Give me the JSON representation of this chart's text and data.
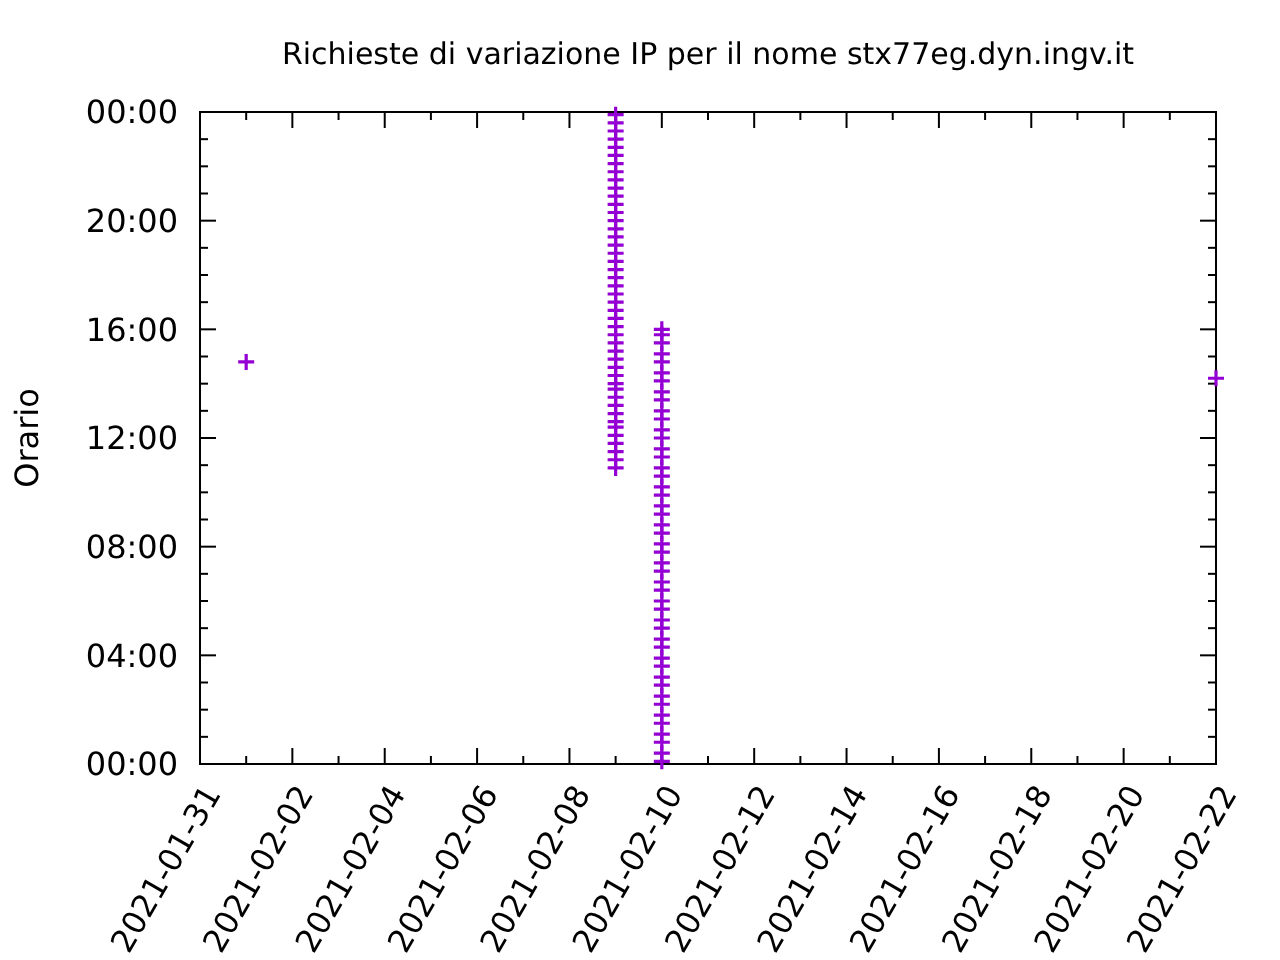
{
  "chart_data": {
    "type": "scatter",
    "title": "Richieste di variazione IP per il nome stx77eg.dyn.ingv.it",
    "ylabel": "Orario",
    "marker": "cross",
    "grid": false,
    "xlim": [
      "2021-01-31",
      "2021-02-22"
    ],
    "xticks": [
      {
        "value": "2021-01-31",
        "label": "2021-01-31"
      },
      {
        "value": "2021-02-01",
        "label": null
      },
      {
        "value": "2021-02-02",
        "label": "2021-02-02"
      },
      {
        "value": "2021-02-03",
        "label": null
      },
      {
        "value": "2021-02-04",
        "label": "2021-02-04"
      },
      {
        "value": "2021-02-05",
        "label": null
      },
      {
        "value": "2021-02-06",
        "label": "2021-02-06"
      },
      {
        "value": "2021-02-07",
        "label": null
      },
      {
        "value": "2021-02-08",
        "label": "2021-02-08"
      },
      {
        "value": "2021-02-09",
        "label": null
      },
      {
        "value": "2021-02-10",
        "label": "2021-02-10"
      },
      {
        "value": "2021-02-11",
        "label": null
      },
      {
        "value": "2021-02-12",
        "label": "2021-02-12"
      },
      {
        "value": "2021-02-13",
        "label": null
      },
      {
        "value": "2021-02-14",
        "label": "2021-02-14"
      },
      {
        "value": "2021-02-15",
        "label": null
      },
      {
        "value": "2021-02-16",
        "label": "2021-02-16"
      },
      {
        "value": "2021-02-17",
        "label": null
      },
      {
        "value": "2021-02-18",
        "label": "2021-02-18"
      },
      {
        "value": "2021-02-19",
        "label": null
      },
      {
        "value": "2021-02-20",
        "label": "2021-02-20"
      },
      {
        "value": "2021-02-21",
        "label": null
      },
      {
        "value": "2021-02-22",
        "label": "2021-02-22"
      }
    ],
    "ylim": [
      0,
      24
    ],
    "yticks": [
      {
        "value": 0,
        "label": "00:00"
      },
      {
        "value": 1,
        "label": null
      },
      {
        "value": 2,
        "label": null
      },
      {
        "value": 3,
        "label": null
      },
      {
        "value": 4,
        "label": "04:00"
      },
      {
        "value": 5,
        "label": null
      },
      {
        "value": 6,
        "label": null
      },
      {
        "value": 7,
        "label": null
      },
      {
        "value": 8,
        "label": "08:00"
      },
      {
        "value": 9,
        "label": null
      },
      {
        "value": 10,
        "label": null
      },
      {
        "value": 11,
        "label": null
      },
      {
        "value": 12,
        "label": "12:00"
      },
      {
        "value": 13,
        "label": null
      },
      {
        "value": 14,
        "label": null
      },
      {
        "value": 15,
        "label": null
      },
      {
        "value": 16,
        "label": "16:00"
      },
      {
        "value": 17,
        "label": null
      },
      {
        "value": 18,
        "label": null
      },
      {
        "value": 19,
        "label": null
      },
      {
        "value": 20,
        "label": "20:00"
      },
      {
        "value": 21,
        "label": null
      },
      {
        "value": 22,
        "label": null
      },
      {
        "value": 23,
        "label": null
      },
      {
        "value": 24,
        "label": "00:00"
      }
    ],
    "series": [
      {
        "color": "#9400d3",
        "x": [
          "2021-02-01",
          "2021-02-09",
          "2021-02-09",
          "2021-02-09",
          "2021-02-09",
          "2021-02-09",
          "2021-02-09",
          "2021-02-09",
          "2021-02-09",
          "2021-02-09",
          "2021-02-09",
          "2021-02-09",
          "2021-02-09",
          "2021-02-09",
          "2021-02-09",
          "2021-02-09",
          "2021-02-09",
          "2021-02-09",
          "2021-02-09",
          "2021-02-09",
          "2021-02-09",
          "2021-02-09",
          "2021-02-09",
          "2021-02-09",
          "2021-02-09",
          "2021-02-09",
          "2021-02-09",
          "2021-02-09",
          "2021-02-09",
          "2021-02-09",
          "2021-02-09",
          "2021-02-09",
          "2021-02-09",
          "2021-02-09",
          "2021-02-09",
          "2021-02-09",
          "2021-02-09",
          "2021-02-09",
          "2021-02-09",
          "2021-02-09",
          "2021-02-09",
          "2021-02-09",
          "2021-02-09",
          "2021-02-09",
          "2021-02-09",
          "2021-02-09",
          "2021-02-10",
          "2021-02-10",
          "2021-02-10",
          "2021-02-10",
          "2021-02-10",
          "2021-02-10",
          "2021-02-10",
          "2021-02-10",
          "2021-02-10",
          "2021-02-10",
          "2021-02-10",
          "2021-02-10",
          "2021-02-10",
          "2021-02-10",
          "2021-02-10",
          "2021-02-10",
          "2021-02-10",
          "2021-02-10",
          "2021-02-10",
          "2021-02-10",
          "2021-02-10",
          "2021-02-10",
          "2021-02-10",
          "2021-02-10",
          "2021-02-10",
          "2021-02-10",
          "2021-02-10",
          "2021-02-10",
          "2021-02-10",
          "2021-02-10",
          "2021-02-10",
          "2021-02-10",
          "2021-02-10",
          "2021-02-10",
          "2021-02-10",
          "2021-02-10",
          "2021-02-10",
          "2021-02-10",
          "2021-02-10",
          "2021-02-10",
          "2021-02-10",
          "2021-02-10",
          "2021-02-10",
          "2021-02-10",
          "2021-02-10",
          "2021-02-10",
          "2021-02-10",
          "2021-02-22"
        ],
        "values": [
          14.8,
          10.9,
          11.2,
          11.5,
          11.8,
          12.1,
          12.4,
          12.6,
          12.9,
          13.2,
          13.5,
          13.8,
          14.0,
          14.3,
          14.6,
          14.9,
          15.2,
          15.5,
          15.8,
          16.1,
          16.4,
          16.7,
          17.0,
          17.3,
          17.6,
          17.9,
          18.2,
          18.5,
          18.8,
          19.1,
          19.4,
          19.7,
          20.0,
          20.3,
          20.6,
          20.9,
          21.2,
          21.5,
          21.8,
          22.1,
          22.4,
          22.7,
          23.0,
          23.3,
          23.6,
          23.9,
          0.1,
          0.4,
          0.8,
          1.1,
          1.5,
          1.8,
          2.2,
          2.5,
          2.9,
          3.2,
          3.6,
          3.9,
          4.3,
          4.6,
          5.0,
          5.3,
          5.7,
          6.0,
          6.4,
          6.7,
          7.1,
          7.4,
          7.8,
          8.1,
          8.5,
          8.8,
          9.2,
          9.5,
          9.9,
          10.2,
          10.6,
          10.9,
          11.3,
          11.6,
          12.0,
          12.3,
          12.7,
          13.0,
          13.4,
          13.7,
          14.1,
          14.4,
          14.8,
          15.1,
          15.5,
          15.8,
          16.0,
          14.2
        ]
      }
    ]
  }
}
